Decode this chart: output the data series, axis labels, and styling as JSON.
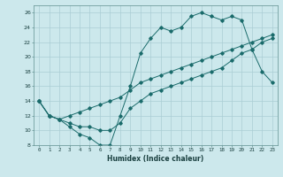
{
  "xlabel": "Humidex (Indice chaleur)",
  "ylabel": "",
  "bg_color": "#cce8ec",
  "grid_color": "#aacdd4",
  "line_color": "#1a6b6b",
  "xlim": [
    -0.5,
    23.5
  ],
  "ylim": [
    8,
    27
  ],
  "xticks": [
    0,
    1,
    2,
    3,
    4,
    5,
    6,
    7,
    8,
    9,
    10,
    11,
    12,
    13,
    14,
    15,
    16,
    17,
    18,
    19,
    20,
    21,
    22,
    23
  ],
  "yticks": [
    8,
    10,
    12,
    14,
    16,
    18,
    20,
    22,
    24,
    26
  ],
  "line1_x": [
    0,
    1,
    2,
    3,
    4,
    5,
    6,
    7,
    8,
    9,
    10,
    11,
    12,
    13,
    14,
    15,
    16,
    17,
    18,
    19,
    20,
    21,
    22,
    23
  ],
  "line1_y": [
    14,
    12,
    11.5,
    10.5,
    9.5,
    9,
    8,
    8,
    12,
    16,
    20.5,
    22.5,
    24,
    23.5,
    24,
    25.5,
    26,
    25.5,
    25,
    25.5,
    25,
    21,
    18,
    16.5
  ],
  "line2_x": [
    0,
    1,
    2,
    3,
    4,
    5,
    6,
    7,
    8,
    9,
    10,
    11,
    12,
    13,
    14,
    15,
    16,
    17,
    18,
    19,
    20,
    21,
    22,
    23
  ],
  "line2_y": [
    14,
    12,
    11.5,
    12,
    12.5,
    13,
    13.5,
    14,
    14.5,
    15.5,
    16.5,
    17,
    17.5,
    18,
    18.5,
    19,
    19.5,
    20,
    20.5,
    21,
    21.5,
    22,
    22.5,
    23
  ],
  "line3_x": [
    0,
    1,
    2,
    3,
    4,
    5,
    6,
    7,
    8,
    9,
    10,
    11,
    12,
    13,
    14,
    15,
    16,
    17,
    18,
    19,
    20,
    21,
    22,
    23
  ],
  "line3_y": [
    14,
    12,
    11.5,
    11,
    10.5,
    10.5,
    10,
    10,
    11,
    13,
    14,
    15,
    15.5,
    16,
    16.5,
    17,
    17.5,
    18,
    18.5,
    19.5,
    20.5,
    21,
    22,
    22.5
  ]
}
